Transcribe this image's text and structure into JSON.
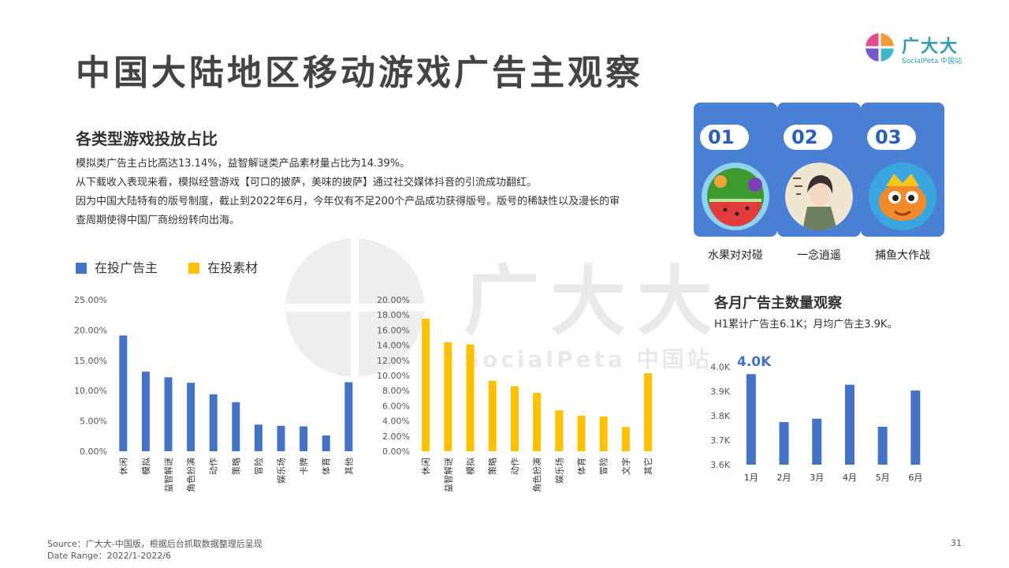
{
  "page_title": "中国大陆地区移动游戏广告主观察",
  "logo": {
    "name": "广大大",
    "sub": "SocialPeta 中国站"
  },
  "watermark": {
    "text": "广大大",
    "sub": "SocialPeta 中国站"
  },
  "section1": {
    "title": "各类型游戏投放占比",
    "lines": [
      "模拟类广告主占比高达13.14%，益智解谜类产品素材量占比为14.39%。",
      "从下载收入表现来看，模拟经营游戏【可口的披萨，美味的披萨】通过社交媒体抖音的引流成功翻红。",
      "因为中国大陆特有的版号制度，截止到2022年6月，今年仅有不足200个产品成功获得版号。版号的稀缺性以及漫长的审",
      "查周期使得中国厂商纷纷转向出海。"
    ]
  },
  "legend": [
    {
      "label": "在投广告主",
      "color": "#4472c4"
    },
    {
      "label": "在投素材",
      "color": "#ffc000"
    }
  ],
  "cards": [
    {
      "num": "01",
      "label": "水果对对碰",
      "icon": "watermelon-game-icon"
    },
    {
      "num": "02",
      "label": "一念逍遥",
      "icon": "xianxia-character-game-icon"
    },
    {
      "num": "03",
      "label": "捕鱼大作战",
      "icon": "goldfish-game-icon"
    }
  ],
  "section2": {
    "title": "各月广告主数量观察",
    "desc": "H1累计广告主6.1K；月均广告主3.9K。",
    "callout": "4.0K"
  },
  "footer": {
    "source": "Source：广大大-中国版，根据后台抓取数据整理后呈现",
    "range": "Date Range：2022/1-2022/6",
    "page": "31"
  },
  "chart_data": [
    {
      "type": "bar",
      "series": [
        {
          "name": "在投广告主",
          "color": "#4472c4",
          "values": [
            19.1,
            13.14,
            12.2,
            11.3,
            9.4,
            8.1,
            4.4,
            4.2,
            4.1,
            2.6,
            11.4
          ]
        }
      ],
      "categories": [
        "休闲",
        "模拟",
        "益智解谜",
        "角色扮演",
        "动作",
        "策略",
        "冒险",
        "娱乐场",
        "卡牌",
        "体育",
        "其他"
      ],
      "ylim": [
        0,
        25
      ],
      "yticks": [
        "0.00%",
        "5.00%",
        "10.00%",
        "15.00%",
        "20.00%",
        "25.00%"
      ],
      "grid": false
    },
    {
      "type": "bar",
      "series": [
        {
          "name": "在投素材",
          "color": "#ffc000",
          "values": [
            17.5,
            14.39,
            14.1,
            9.3,
            8.6,
            7.7,
            5.4,
            4.7,
            4.6,
            3.2,
            10.3
          ]
        }
      ],
      "categories": [
        "休闲",
        "益智解谜",
        "模拟",
        "策略",
        "动作",
        "角色扮演",
        "娱乐场",
        "体育",
        "冒险",
        "文字",
        "其它"
      ],
      "ylim": [
        0,
        20
      ],
      "yticks": [
        "0.00%",
        "2.00%",
        "4.00%",
        "6.00%",
        "8.00%",
        "10.00%",
        "12.00%",
        "14.00%",
        "16.00%",
        "18.00%",
        "20.00%"
      ],
      "grid": false
    },
    {
      "type": "bar",
      "series": [
        {
          "color": "#4472c4",
          "values": [
            3.97,
            3.774,
            3.788,
            3.927,
            3.755,
            3.903
          ]
        }
      ],
      "categories": [
        "1月",
        "2月",
        "3月",
        "4月",
        "5月",
        "6月"
      ],
      "ylim": [
        3.6,
        4.0
      ],
      "yticks": [
        "3.6K",
        "3.7K",
        "3.8K",
        "3.9K",
        "4.0K"
      ],
      "grid": false
    }
  ]
}
